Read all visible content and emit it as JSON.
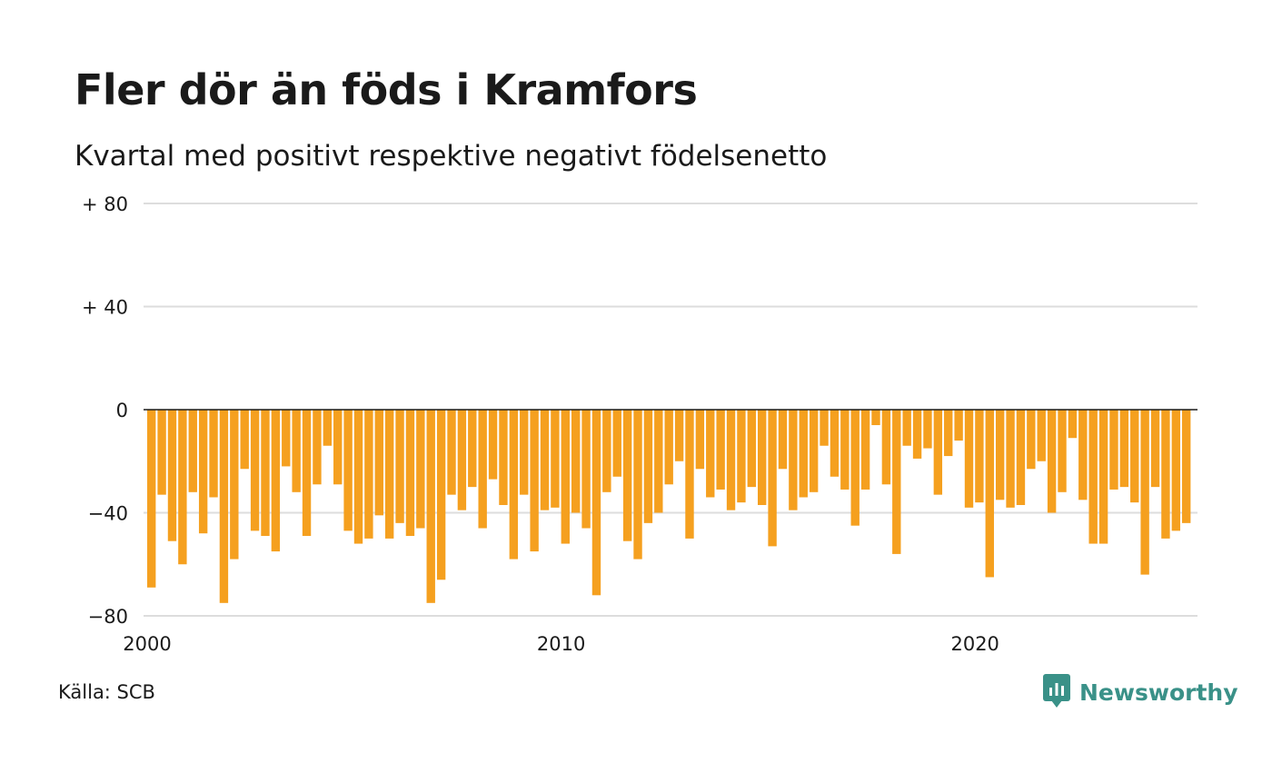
{
  "title": "Fler dör än föds i Kramfors",
  "subtitle": "Kvartal med positivt respektive negativt födelsenetto",
  "source": "Källa: SCB",
  "brand": {
    "name": "Newsworthy",
    "color": "#3a9188",
    "icon": "newsworthy-chart-bubble-icon"
  },
  "colors": {
    "bar": "#f5a01f",
    "grid": "#dddddd",
    "zero_line": "#1a1a1a",
    "text": "#1a1a1a"
  },
  "chart_data": {
    "type": "bar",
    "x_start": "2000 Q1",
    "x_step": "quarter",
    "xlim": [
      "2000 Q1",
      "2025 Q2"
    ],
    "ylim": [
      -80,
      80
    ],
    "yticks": [
      {
        "value": 80,
        "label": "+ 80"
      },
      {
        "value": 40,
        "label": "+ 40"
      },
      {
        "value": 0,
        "label": "0"
      },
      {
        "value": -40,
        "label": "−40"
      },
      {
        "value": -80,
        "label": "−80"
      }
    ],
    "xticks": [
      {
        "year": 2000,
        "label": "2000"
      },
      {
        "year": 2010,
        "label": "2010"
      },
      {
        "year": 2020,
        "label": "2020"
      }
    ],
    "grid": true,
    "values": [
      -69,
      -33,
      -51,
      -60,
      -32,
      -48,
      -34,
      -75,
      -58,
      -23,
      -47,
      -49,
      -55,
      -22,
      -32,
      -49,
      -29,
      -14,
      -29,
      -47,
      -52,
      -50,
      -41,
      -50,
      -44,
      -49,
      -46,
      -75,
      -66,
      -33,
      -39,
      -30,
      -46,
      -27,
      -37,
      -58,
      -33,
      -55,
      -39,
      -38,
      -52,
      -40,
      -46,
      -72,
      -32,
      -26,
      -51,
      -58,
      -44,
      -40,
      -29,
      -20,
      -50,
      -23,
      -34,
      -31,
      -39,
      -36,
      -30,
      -37,
      -53,
      -23,
      -39,
      -34,
      -32,
      -14,
      -26,
      -31,
      -45,
      -31,
      -6,
      -29,
      -56,
      -14,
      -19,
      -15,
      -33,
      -18,
      -12,
      -38,
      -36,
      -65,
      -35,
      -38,
      -37,
      -23,
      -20,
      -40,
      -32,
      -11,
      -35,
      -52,
      -52,
      -31,
      -30,
      -36,
      -64,
      -30,
      -50,
      -47,
      -44
    ]
  }
}
